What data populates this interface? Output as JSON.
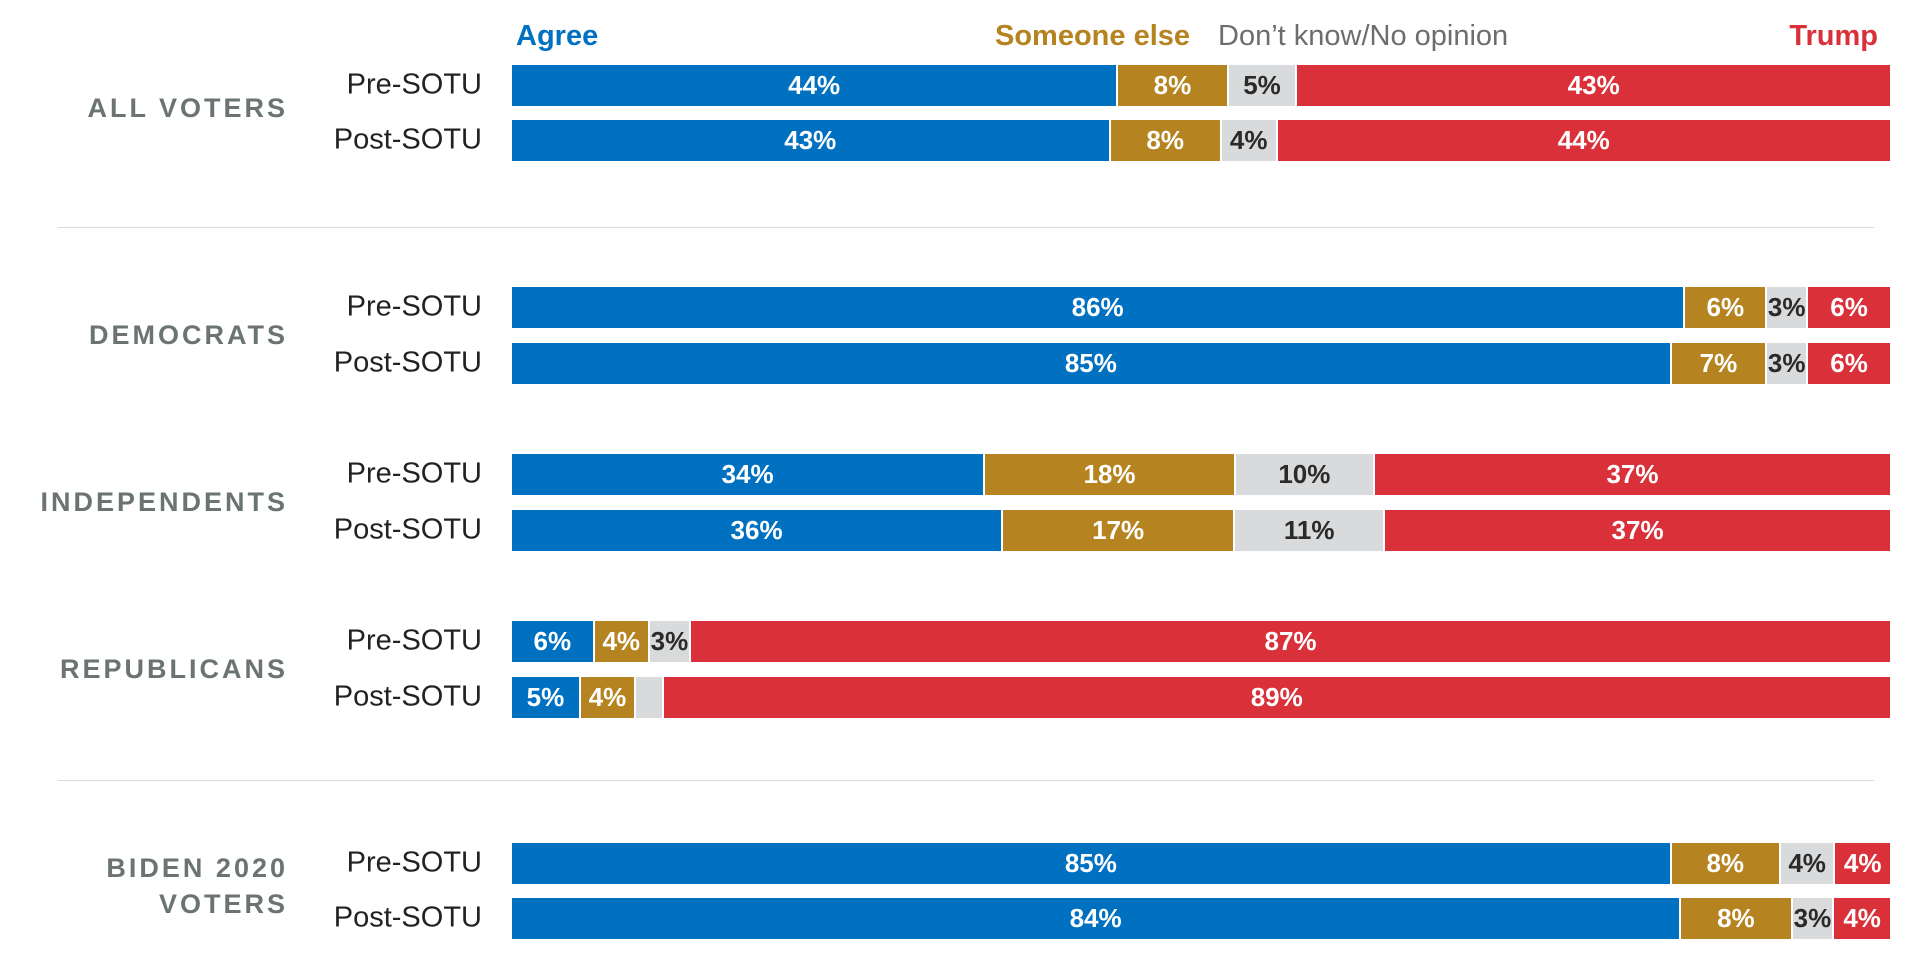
{
  "chart_data": {
    "type": "bar",
    "orientation": "horizontal",
    "stacked": true,
    "normalized": true,
    "legend_placement": "top",
    "grid": false,
    "legend": [
      {
        "key": "agree",
        "label": "Agree",
        "color": "#0071c1"
      },
      {
        "key": "else",
        "label": "Someone else",
        "color": "#b5831f"
      },
      {
        "key": "dk",
        "label": "Don’t know/No opinion",
        "color": "#d8dadb"
      },
      {
        "key": "trump",
        "label": "Trump",
        "color": "#d9303a"
      }
    ],
    "groups": [
      {
        "label": "ALL VOTERS",
        "rows": [
          {
            "label": "Pre-SOTU",
            "values": {
              "agree": 44,
              "else": 8,
              "dk": 5,
              "trump": 43
            },
            "labels": {
              "agree": "44%",
              "else": "8%",
              "dk": "5%",
              "trump": "43%"
            }
          },
          {
            "label": "Post-SOTU",
            "values": {
              "agree": 43,
              "else": 8,
              "dk": 4,
              "trump": 44
            },
            "labels": {
              "agree": "43%",
              "else": "8%",
              "dk": "4%",
              "trump": "44%"
            }
          }
        ]
      },
      {
        "label": "DEMOCRATS",
        "rows": [
          {
            "label": "Pre-SOTU",
            "values": {
              "agree": 86,
              "else": 6,
              "dk": 3,
              "trump": 6
            },
            "labels": {
              "agree": "86%",
              "else": "6%",
              "dk": "3%",
              "trump": "6%"
            }
          },
          {
            "label": "Post-SOTU",
            "values": {
              "agree": 85,
              "else": 7,
              "dk": 3,
              "trump": 6
            },
            "labels": {
              "agree": "85%",
              "else": "7%",
              "dk": "3%",
              "trump": "6%"
            }
          }
        ]
      },
      {
        "label": "INDEPENDENTS",
        "rows": [
          {
            "label": "Pre-SOTU",
            "values": {
              "agree": 34,
              "else": 18,
              "dk": 10,
              "trump": 37
            },
            "labels": {
              "agree": "34%",
              "else": "18%",
              "dk": "10%",
              "trump": "37%"
            }
          },
          {
            "label": "Post-SOTU",
            "values": {
              "agree": 36,
              "else": 17,
              "dk": 11,
              "trump": 37
            },
            "labels": {
              "agree": "36%",
              "else": "17%",
              "dk": "11%",
              "trump": "37%"
            }
          }
        ]
      },
      {
        "label": "REPUBLICANS",
        "rows": [
          {
            "label": "Pre-SOTU",
            "values": {
              "agree": 6,
              "else": 4,
              "dk": 3,
              "trump": 87
            },
            "labels": {
              "agree": "6%",
              "else": "4%",
              "dk": "3%",
              "trump": "87%"
            }
          },
          {
            "label": "Post-SOTU",
            "values": {
              "agree": 5,
              "else": 4,
              "dk": 2,
              "trump": 89
            },
            "labels": {
              "agree": "5%",
              "else": "4%",
              "dk": "",
              "trump": "89%"
            }
          }
        ]
      },
      {
        "label": "BIDEN 2020 VOTERS",
        "rows": [
          {
            "label": "Pre-SOTU",
            "values": {
              "agree": 85,
              "else": 8,
              "dk": 4,
              "trump": 4
            },
            "labels": {
              "agree": "85%",
              "else": "8%",
              "dk": "4%",
              "trump": "4%"
            }
          },
          {
            "label": "Post-SOTU",
            "values": {
              "agree": 84,
              "else": 8,
              "dk": 3,
              "trump": 4
            },
            "labels": {
              "agree": "84%",
              "else": "8%",
              "dk": "3%",
              "trump": "4%"
            }
          }
        ]
      }
    ]
  }
}
